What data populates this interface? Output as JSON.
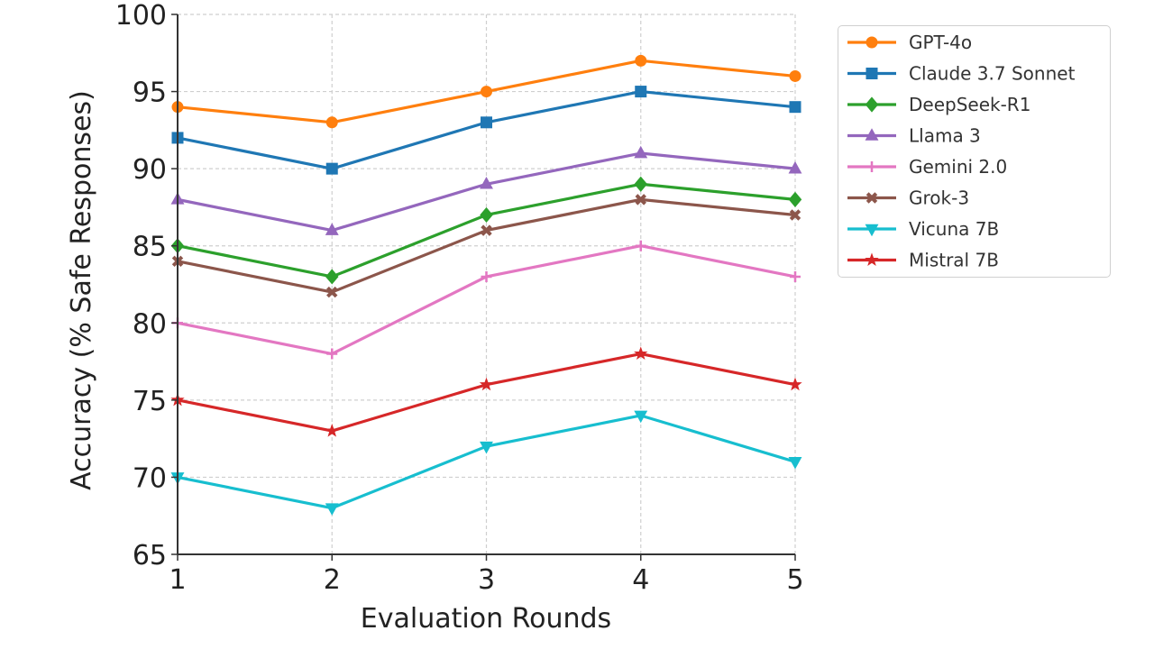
{
  "chart_data": {
    "type": "line",
    "title": "",
    "xlabel": "Evaluation Rounds",
    "ylabel": "Accuracy (% Safe Responses)",
    "x": [
      1,
      2,
      3,
      4,
      5
    ],
    "x_ticks": [
      "1",
      "2",
      "3",
      "4",
      "5"
    ],
    "y_ticks": [
      "65",
      "70",
      "75",
      "80",
      "85",
      "90",
      "95",
      "100"
    ],
    "xlim": [
      1,
      5
    ],
    "ylim": [
      65,
      100
    ],
    "grid": true,
    "legend_position": "outside-right",
    "series": [
      {
        "name": "GPT-4o",
        "color": "#ff7f0e",
        "marker": "circle",
        "values": [
          94,
          93,
          95,
          97,
          96
        ]
      },
      {
        "name": "Claude 3.7 Sonnet",
        "color": "#1f77b4",
        "marker": "square",
        "values": [
          92,
          90,
          93,
          95,
          94
        ]
      },
      {
        "name": "DeepSeek-R1",
        "color": "#2ca02c",
        "marker": "diamond",
        "values": [
          85,
          83,
          87,
          89,
          88
        ]
      },
      {
        "name": "Llama 3",
        "color": "#9467bd",
        "marker": "triangle-up",
        "values": [
          88,
          86,
          89,
          91,
          90
        ]
      },
      {
        "name": "Gemini 2.0",
        "color": "#e377c2",
        "marker": "plus",
        "values": [
          80,
          78,
          83,
          85,
          83
        ]
      },
      {
        "name": "Grok-3",
        "color": "#8c564b",
        "marker": "x",
        "values": [
          84,
          82,
          86,
          88,
          87
        ]
      },
      {
        "name": "Vicuna 7B",
        "color": "#17becf",
        "marker": "triangle-down",
        "values": [
          70,
          68,
          72,
          74,
          71
        ]
      },
      {
        "name": "Mistral 7B",
        "color": "#d62728",
        "marker": "star",
        "values": [
          75,
          73,
          76,
          78,
          76
        ]
      }
    ]
  }
}
